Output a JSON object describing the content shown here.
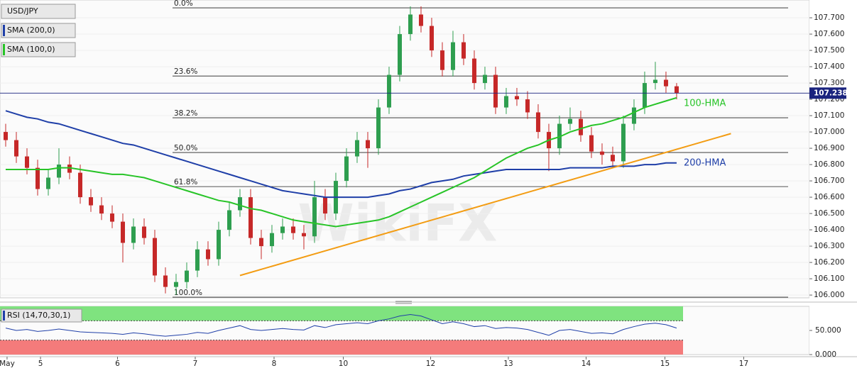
{
  "chart_data": {
    "type": "candlestick",
    "symbol": "USD/JPY",
    "watermark": "WikiFX",
    "xlim": [
      -0.533,
      75.47
    ],
    "xticks": [
      {
        "value": 0.13,
        "label": "May"
      },
      {
        "value": 3.27,
        "label": "5"
      },
      {
        "value": 10.5,
        "label": "6"
      },
      {
        "value": 17.8,
        "label": "7"
      },
      {
        "value": 25.2,
        "label": "8"
      },
      {
        "value": 31.7,
        "label": "10"
      },
      {
        "value": 39.9,
        "label": "12"
      },
      {
        "value": 47.2,
        "label": "13"
      },
      {
        "value": 54.5,
        "label": "14"
      },
      {
        "value": 61.9,
        "label": "15"
      },
      {
        "value": 69.3,
        "label": "17"
      }
    ],
    "ylim": [
      105.983,
      107.809
    ],
    "yticks": [
      {
        "value": 106.0,
        "label": "106.000"
      },
      {
        "value": 106.1,
        "label": "106.100"
      },
      {
        "value": 106.2,
        "label": "106.200"
      },
      {
        "value": 106.3,
        "label": "106.300"
      },
      {
        "value": 106.4,
        "label": "106.400"
      },
      {
        "value": 106.5,
        "label": "106.500"
      },
      {
        "value": 106.6,
        "label": "106.600"
      },
      {
        "value": 106.7,
        "label": "106.700"
      },
      {
        "value": 106.8,
        "label": "106.800"
      },
      {
        "value": 106.9,
        "label": "106.900"
      },
      {
        "value": 107.0,
        "label": "107.000"
      },
      {
        "value": 107.1,
        "label": "107.100"
      },
      {
        "value": 107.2,
        "label": "107.200"
      },
      {
        "value": 107.3,
        "label": "107.300"
      },
      {
        "value": 107.4,
        "label": "107.400"
      },
      {
        "value": 107.5,
        "label": "107.500"
      },
      {
        "value": 107.6,
        "label": "107.600"
      },
      {
        "value": 107.7,
        "label": "107.700"
      }
    ],
    "grid": true,
    "up_color": "#2e9e4f",
    "down_color": "#c62828",
    "open": [
      107.0,
      106.95,
      106.85,
      106.78,
      106.65,
      106.72,
      106.8,
      106.75,
      106.6,
      106.55,
      106.5,
      106.45,
      106.32,
      106.42,
      106.35,
      106.12,
      106.05,
      106.08,
      106.15,
      106.28,
      106.22,
      106.4,
      106.52,
      106.6,
      106.35,
      106.3,
      106.38,
      106.42,
      106.38,
      106.36,
      106.6,
      106.5,
      106.7,
      106.85,
      106.95,
      106.9,
      107.15,
      107.35,
      107.6,
      107.72,
      107.65,
      107.5,
      107.38,
      107.55,
      107.45,
      107.3,
      107.35,
      107.15,
      107.22,
      107.2,
      107.12,
      107.0,
      106.9,
      107.05,
      107.08,
      106.98,
      106.88,
      106.86,
      106.82,
      107.05,
      107.15,
      107.3,
      107.32,
      107.28
    ],
    "high": [
      107.05,
      107.0,
      106.9,
      106.83,
      106.77,
      106.9,
      106.85,
      106.8,
      106.65,
      106.6,
      106.55,
      106.5,
      106.47,
      106.47,
      106.4,
      106.17,
      106.13,
      106.2,
      106.33,
      106.33,
      106.45,
      106.57,
      106.65,
      106.65,
      106.4,
      106.43,
      106.47,
      106.47,
      106.43,
      106.7,
      106.65,
      106.75,
      106.9,
      107.0,
      107.0,
      107.2,
      107.4,
      107.65,
      107.77,
      107.77,
      107.7,
      107.55,
      107.62,
      107.6,
      107.5,
      107.4,
      107.4,
      107.27,
      107.27,
      107.25,
      107.17,
      107.05,
      107.1,
      107.15,
      107.13,
      107.03,
      106.93,
      106.91,
      107.1,
      107.2,
      107.37,
      107.43,
      107.37,
      107.3
    ],
    "low": [
      106.91,
      106.81,
      106.74,
      106.61,
      106.61,
      106.68,
      106.71,
      106.56,
      106.51,
      106.46,
      106.41,
      106.2,
      106.28,
      106.31,
      106.08,
      106.01,
      106.0,
      106.04,
      106.11,
      106.18,
      106.18,
      106.36,
      106.48,
      106.31,
      106.22,
      106.26,
      106.34,
      106.34,
      106.28,
      106.32,
      106.46,
      106.46,
      106.66,
      106.81,
      106.78,
      106.86,
      107.11,
      107.31,
      107.56,
      107.61,
      107.46,
      107.34,
      107.34,
      107.41,
      107.26,
      107.26,
      107.11,
      107.11,
      107.16,
      107.08,
      106.96,
      106.76,
      106.86,
      107.01,
      106.94,
      106.84,
      106.8,
      106.78,
      106.78,
      107.01,
      107.11,
      107.26,
      107.24,
      107.2
    ],
    "close": [
      106.95,
      106.85,
      106.78,
      106.65,
      106.72,
      106.8,
      106.75,
      106.6,
      106.55,
      106.5,
      106.45,
      106.32,
      106.42,
      106.35,
      106.12,
      106.05,
      106.08,
      106.15,
      106.28,
      106.22,
      106.4,
      106.52,
      106.6,
      106.35,
      106.3,
      106.38,
      106.42,
      106.38,
      106.36,
      106.6,
      106.5,
      106.7,
      106.85,
      106.95,
      106.9,
      107.15,
      107.35,
      107.6,
      107.72,
      107.65,
      107.5,
      107.38,
      107.55,
      107.45,
      107.3,
      107.35,
      107.15,
      107.22,
      107.2,
      107.12,
      107.0,
      106.9,
      107.05,
      107.08,
      106.98,
      106.88,
      106.86,
      106.82,
      107.05,
      107.15,
      107.3,
      107.32,
      107.28,
      107.238
    ],
    "last_price": {
      "value": 107.238,
      "label": "107.238",
      "color": "#1a237e"
    },
    "series": [
      {
        "name": "SMA (200,0)",
        "color": "#1f3fa8",
        "annotation": "200-HMA",
        "values": [
          107.13,
          107.11,
          107.09,
          107.08,
          107.06,
          107.05,
          107.03,
          107.01,
          106.99,
          106.97,
          106.95,
          106.93,
          106.92,
          106.9,
          106.88,
          106.86,
          106.84,
          106.82,
          106.8,
          106.78,
          106.76,
          106.74,
          106.72,
          106.7,
          106.68,
          106.66,
          106.64,
          106.63,
          106.62,
          106.61,
          106.6,
          106.6,
          106.6,
          106.6,
          106.6,
          106.61,
          106.62,
          106.64,
          106.65,
          106.67,
          106.69,
          106.7,
          106.71,
          106.73,
          106.74,
          106.75,
          106.76,
          106.77,
          106.77,
          106.77,
          106.77,
          106.77,
          106.77,
          106.78,
          106.78,
          106.78,
          106.78,
          106.79,
          106.79,
          106.79,
          106.8,
          106.8,
          106.81,
          106.81
        ]
      },
      {
        "name": "SMA (100,0)",
        "color": "#27c427",
        "annotation": "100-HMA",
        "values": [
          106.77,
          106.77,
          106.77,
          106.77,
          106.77,
          106.78,
          106.78,
          106.77,
          106.76,
          106.75,
          106.74,
          106.74,
          106.73,
          106.72,
          106.7,
          106.68,
          106.66,
          106.64,
          106.62,
          106.6,
          106.58,
          106.57,
          106.55,
          106.53,
          106.52,
          106.5,
          106.48,
          106.46,
          106.45,
          106.44,
          106.43,
          106.42,
          106.43,
          106.44,
          106.45,
          106.46,
          106.48,
          106.51,
          106.54,
          106.57,
          106.6,
          106.63,
          106.66,
          106.69,
          106.72,
          106.76,
          106.8,
          106.84,
          106.87,
          106.9,
          106.92,
          106.95,
          106.97,
          107.0,
          107.02,
          107.04,
          107.05,
          107.07,
          107.09,
          107.12,
          107.15,
          107.17,
          107.19,
          107.21
        ]
      }
    ],
    "fib_levels": [
      {
        "label": "0.0%",
        "price": 107.761
      },
      {
        "label": "23.6%",
        "price": 107.343
      },
      {
        "label": "38.2%",
        "price": 107.087
      },
      {
        "label": "50.0%",
        "price": 106.874
      },
      {
        "label": "61.8%",
        "price": 106.665
      },
      {
        "label": "100.0%",
        "price": 105.987
      }
    ],
    "trendline": {
      "color": "#f39c12",
      "x": [
        22,
        68.1
      ],
      "y": [
        106.12,
        106.99
      ]
    },
    "rsi": {
      "label": "RSI (14,70,30,1)",
      "color": "#1f3fa8",
      "ylim": [
        0,
        100
      ],
      "yticks": [
        {
          "value": 0,
          "label": "0.000"
        },
        {
          "value": 50,
          "label": "50.000"
        }
      ],
      "upper": 70,
      "lower": 30,
      "values": [
        55,
        50,
        52,
        48,
        50,
        53,
        50,
        47,
        46,
        45,
        44,
        42,
        45,
        43,
        40,
        38,
        40,
        42,
        46,
        44,
        50,
        55,
        60,
        52,
        50,
        52,
        54,
        52,
        51,
        60,
        56,
        62,
        64,
        66,
        64,
        70,
        74,
        80,
        83,
        80,
        72,
        64,
        68,
        64,
        58,
        60,
        54,
        56,
        55,
        52,
        46,
        40,
        50,
        52,
        48,
        44,
        45,
        43,
        52,
        58,
        63,
        65,
        62,
        55
      ]
    }
  }
}
